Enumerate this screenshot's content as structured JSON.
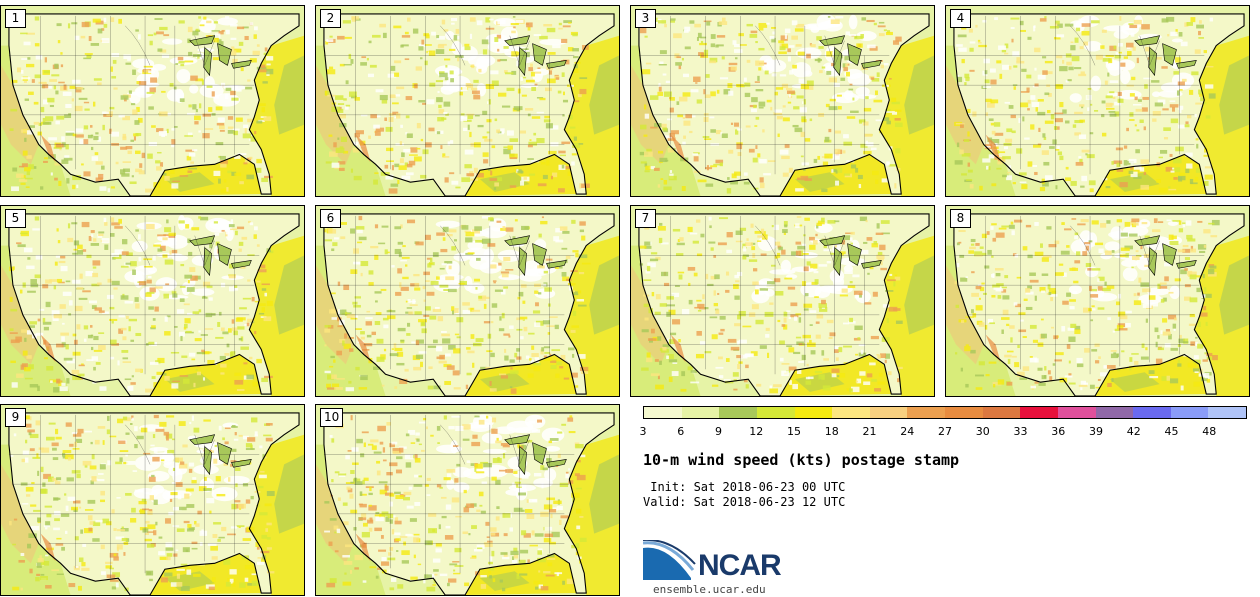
{
  "panels": [
    "1",
    "2",
    "3",
    "4",
    "5",
    "6",
    "7",
    "8",
    "9",
    "10"
  ],
  "colorbar": {
    "colors": [
      "#f5f9d0",
      "#e6f3a6",
      "#a8c85a",
      "#d4e838",
      "#f5ea10",
      "#fce680",
      "#f8d080",
      "#eca050",
      "#e88c40",
      "#dc7840",
      "#e8103c",
      "#e0509c",
      "#9068a8",
      "#6a6af0",
      "#8a9cf8",
      "#b0c4f8"
    ],
    "ticks": [
      "3",
      "6",
      "9",
      "12",
      "15",
      "18",
      "21",
      "24",
      "27",
      "30",
      "33",
      "36",
      "39",
      "42",
      "45",
      "48"
    ]
  },
  "title": "10-m wind speed (kts) postage stamp",
  "init": " Init: Sat 2018-06-23 00 UTC",
  "valid": "Valid: Sat 2018-06-23 12 UTC",
  "logo": {
    "text": "NCAR",
    "url": "ensemble.ucar.edu",
    "colors": {
      "blue": "#1a6ab0",
      "navy": "#1a3a6a"
    }
  }
}
